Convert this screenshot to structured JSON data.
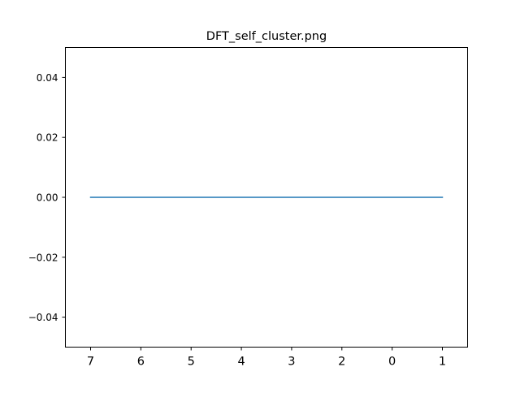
{
  "chart_data": {
    "type": "line",
    "title": "DFT_self_cluster.png",
    "xlabel": "",
    "ylabel": "",
    "categories": [
      "7",
      "6",
      "5",
      "4",
      "3",
      "2",
      "0",
      "1"
    ],
    "series": [
      {
        "values": [
          0,
          0,
          0,
          0,
          0,
          0,
          0,
          0
        ]
      }
    ],
    "ylim": [
      -0.05,
      0.05
    ],
    "yticks": [
      0.04,
      0.02,
      0.0,
      -0.02,
      -0.04
    ],
    "ytick_labels": [
      "0.04",
      "0.02",
      "0.00",
      "−0.02",
      "−0.04"
    ],
    "grid": false,
    "legend": "none",
    "colors": {
      "series_line": "#1f77b4",
      "frame": "#000000"
    }
  }
}
